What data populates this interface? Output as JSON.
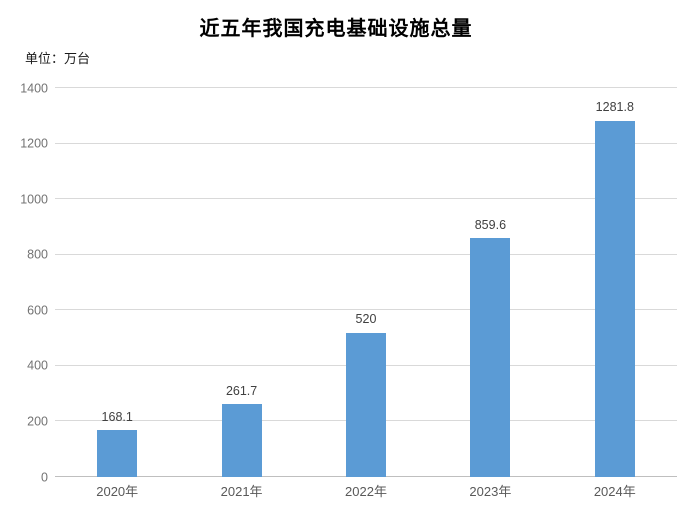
{
  "title": "近五年我国充电基础设施总量",
  "unit_label": "单位：万台",
  "chart_data": {
    "type": "bar",
    "title": "近五年我国充电基础设施总量",
    "unit": "单位：万台",
    "categories": [
      "2020年",
      "2021年",
      "2022年",
      "2023年",
      "2024年"
    ],
    "values": [
      168.1,
      261.7,
      520,
      859.6,
      1281.8
    ],
    "value_labels": [
      "168.1",
      "261.7",
      "520",
      "859.6",
      "1281.8"
    ],
    "xlabel": "",
    "ylabel": "",
    "ylim": [
      0,
      1400
    ],
    "ytick_step": 200,
    "ytick_labels": [
      "0",
      "200",
      "400",
      "600",
      "800",
      "1000",
      "1200",
      "1400"
    ],
    "grid": true,
    "legend": false,
    "bar_color": "#5B9BD5",
    "value_label_color": "#404040",
    "axis_label_color": "#737373",
    "category_label_color": "#595959",
    "gridline_color": "#D9D9D9",
    "axis_line_color": "#BFBFBF"
  }
}
